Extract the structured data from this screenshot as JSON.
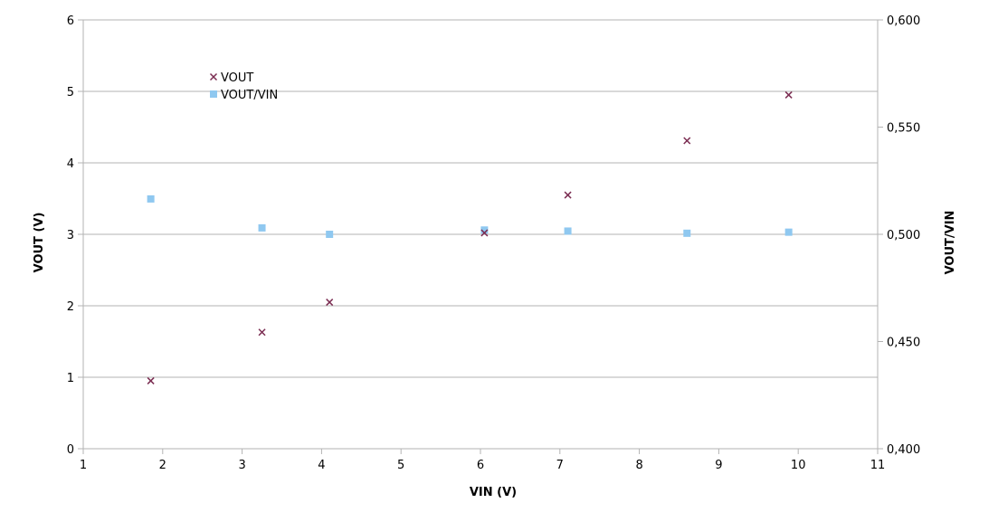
{
  "chart_data": {
    "type": "scatter",
    "xlabel": "VIN (V)",
    "ylabel": "VOUT (V)",
    "y2label": "VOUT/VIN",
    "xlim": [
      1,
      11
    ],
    "ylim": [
      0,
      6
    ],
    "y2lim": [
      0.4,
      0.6
    ],
    "xticks": [
      "1",
      "2",
      "3",
      "4",
      "5",
      "6",
      "7",
      "8",
      "9",
      "10",
      "11"
    ],
    "yticks": [
      "0",
      "1",
      "2",
      "3",
      "4",
      "5",
      "6"
    ],
    "y2ticks": [
      "0,400",
      "0,450",
      "0,500",
      "0,550",
      "0,600"
    ],
    "grid": "horizontal",
    "legend": "top-left",
    "series": [
      {
        "name": "VOUT",
        "axis": "left",
        "marker": "x",
        "color": "#7b2d52",
        "x": [
          1.85,
          3.25,
          4.1,
          6.05,
          7.1,
          8.6,
          9.88
        ],
        "y": [
          0.95,
          1.63,
          2.05,
          3.02,
          3.55,
          4.31,
          4.95
        ]
      },
      {
        "name": "VOUT/VIN",
        "axis": "right",
        "marker": "square",
        "color": "#8fc8f0",
        "x": [
          1.85,
          3.25,
          4.1,
          6.05,
          7.1,
          8.6,
          9.88
        ],
        "y": [
          0.5165,
          0.503,
          0.5,
          0.502,
          0.5015,
          0.5005,
          0.501
        ]
      }
    ]
  }
}
